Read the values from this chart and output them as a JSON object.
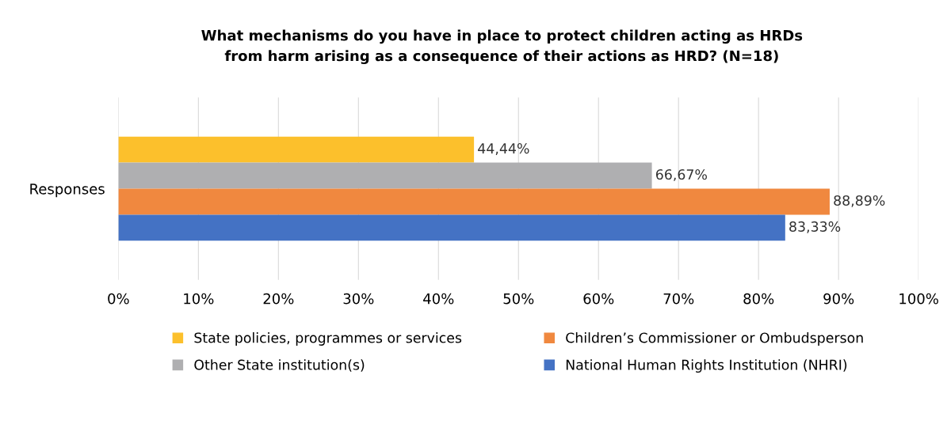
{
  "chart_data": {
    "type": "bar",
    "orientation": "horizontal",
    "title": "What mechanisms do you have in place to protect children acting as HRDs\nfrom harm arising as a consequence of their actions as HRD? (N=18)",
    "categories": [
      "Responses"
    ],
    "series": [
      {
        "name": "State policies, programmes or services",
        "color": "#fcc02c",
        "values": [
          44.44
        ],
        "value_labels": [
          "44,44%"
        ]
      },
      {
        "name": "Other State institution(s)",
        "color": "#afafb1",
        "values": [
          66.67
        ],
        "value_labels": [
          "66,67%"
        ]
      },
      {
        "name": "Children’s Commissioner or Ombudsperson",
        "color": "#f0883f",
        "values": [
          88.89
        ],
        "value_labels": [
          "88,89%"
        ]
      },
      {
        "name": "National Human Rights Institution (NHRI)",
        "color": "#4472c4",
        "values": [
          83.33
        ],
        "value_labels": [
          "83,33%"
        ]
      }
    ],
    "xlim": [
      0,
      100
    ],
    "xticks": [
      {
        "value": 0,
        "label": "0%"
      },
      {
        "value": 10,
        "label": "10%"
      },
      {
        "value": 20,
        "label": "20%"
      },
      {
        "value": 30,
        "label": "30%"
      },
      {
        "value": 40,
        "label": "40%"
      },
      {
        "value": 50,
        "label": "50%"
      },
      {
        "value": 60,
        "label": "60%"
      },
      {
        "value": 70,
        "label": "70%"
      },
      {
        "value": 80,
        "label": "80%"
      },
      {
        "value": 90,
        "label": "90%"
      },
      {
        "value": 100,
        "label": "100%"
      }
    ],
    "grid": "x",
    "legend": "bottom"
  }
}
